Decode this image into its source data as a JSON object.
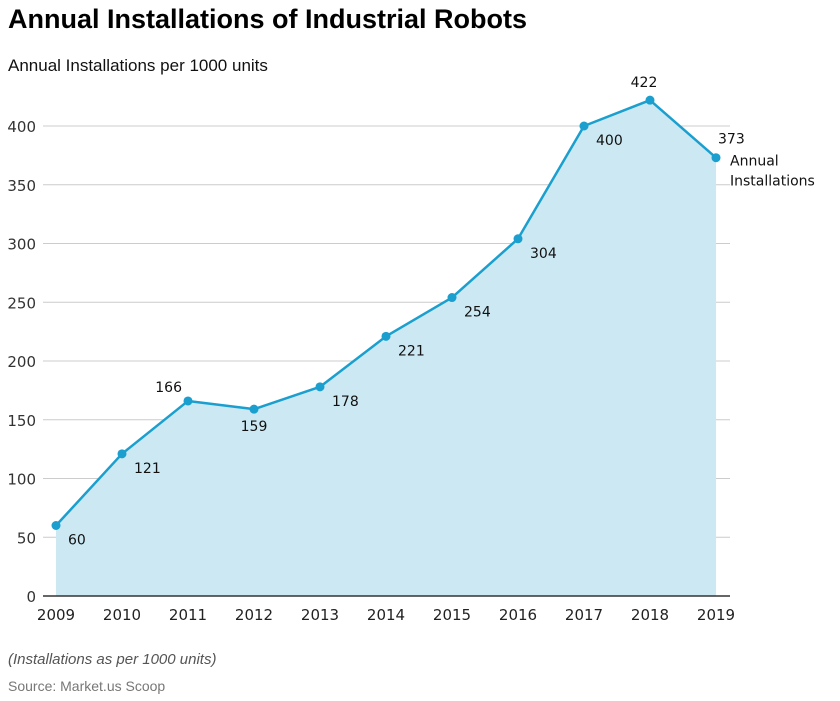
{
  "title": "Annual Installations of Industrial Robots",
  "subtitle": "Annual Installations per 1000 units",
  "note": "(Installations as per 1000 units)",
  "source": "Source: Market.us Scoop",
  "colors": {
    "line": "#1a9fcf",
    "fill": "#cce9f3",
    "grid": "#cccccc",
    "axis": "#333333"
  },
  "chart_data": {
    "type": "area",
    "title": "Annual Installations of Industrial Robots",
    "ylabel": "Annual Installations per 1000 units",
    "xlabel": "",
    "x": [
      "2009",
      "2010",
      "2011",
      "2012",
      "2013",
      "2014",
      "2015",
      "2016",
      "2017",
      "2018",
      "2019"
    ],
    "series": [
      {
        "name": "Annual Installations",
        "values": [
          60,
          121,
          166,
          159,
          178,
          221,
          254,
          304,
          400,
          422,
          373
        ]
      }
    ],
    "yticks": [
      0,
      50,
      100,
      150,
      200,
      250,
      300,
      350,
      400
    ],
    "ylim": [
      0,
      422
    ],
    "grid": true,
    "legend": "end-of-line label"
  }
}
